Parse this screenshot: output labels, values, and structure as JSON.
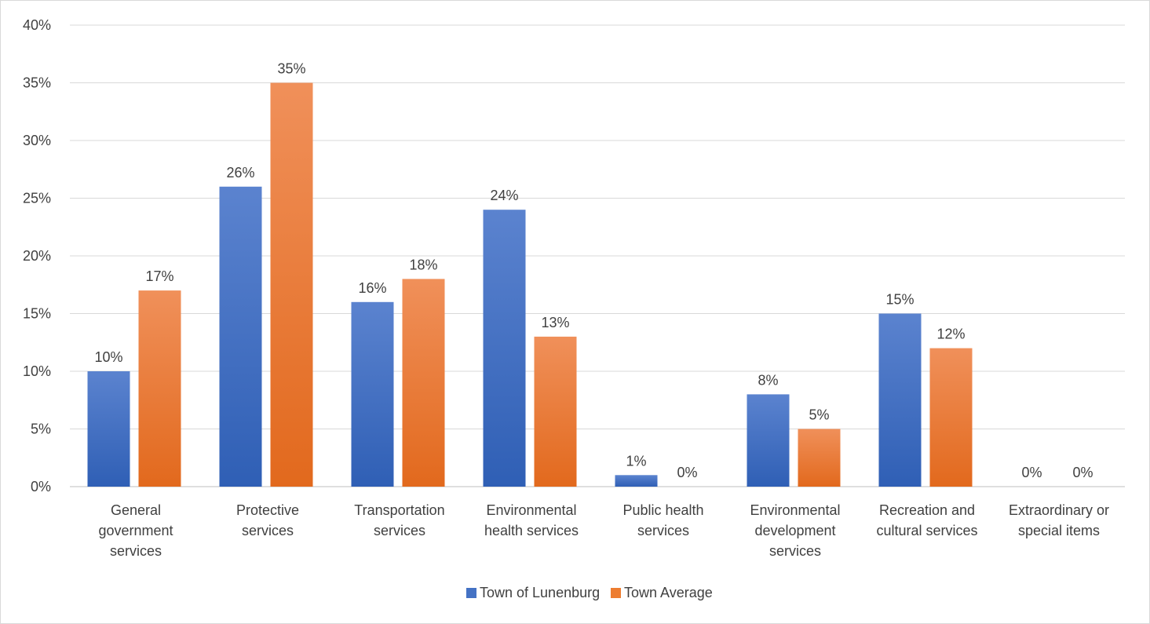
{
  "chart_data": {
    "type": "bar",
    "categories": [
      [
        "General",
        "government",
        "services"
      ],
      [
        "Protective",
        "services"
      ],
      [
        "Transportation",
        "services"
      ],
      [
        "Environmental",
        "health services"
      ],
      [
        "Public health",
        "services"
      ],
      [
        "Environmental",
        "development",
        "services"
      ],
      [
        "Recreation and",
        "cultural services"
      ],
      [
        "Extraordinary or",
        "special items"
      ]
    ],
    "series": [
      {
        "name": "Town of Lunenburg",
        "values": [
          10,
          26,
          16,
          24,
          1,
          8,
          15,
          0
        ],
        "labels": [
          "10%",
          "26%",
          "16%",
          "24%",
          "1%",
          "8%",
          "15%",
          "0%"
        ],
        "color": "#4472C4"
      },
      {
        "name": "Town Average",
        "values": [
          17,
          35,
          18,
          13,
          0,
          5,
          12,
          0
        ],
        "labels": [
          "17%",
          "35%",
          "18%",
          "13%",
          "0%",
          "5%",
          "12%",
          "0%"
        ],
        "color": "#ED7D31"
      }
    ],
    "yticks": [
      "0%",
      "5%",
      "10%",
      "15%",
      "20%",
      "25%",
      "30%",
      "35%",
      "40%"
    ],
    "ylim": [
      0,
      40
    ],
    "grid": true,
    "legend_position": "bottom"
  }
}
